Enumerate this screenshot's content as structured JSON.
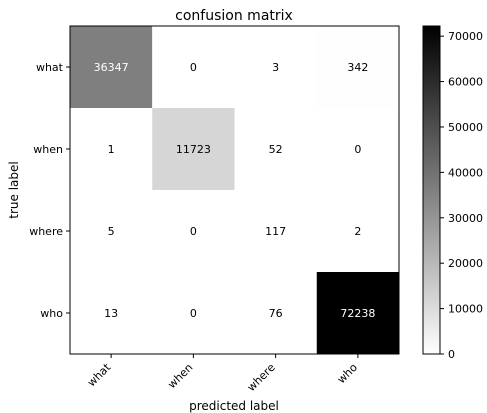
{
  "chart_data": {
    "type": "heatmap",
    "title": "confusion matrix",
    "xlabel": "predicted label",
    "ylabel": "true label",
    "x_categories": [
      "what",
      "when",
      "where",
      "who"
    ],
    "y_categories": [
      "what",
      "when",
      "where",
      "who"
    ],
    "matrix": [
      [
        36347,
        0,
        3,
        342
      ],
      [
        1,
        11723,
        52,
        0
      ],
      [
        5,
        0,
        117,
        2
      ],
      [
        13,
        0,
        76,
        72238
      ]
    ],
    "colormap": "grayscale (white = low, black = high)",
    "colorbar": {
      "range": [
        0,
        72238
      ],
      "ticks": [
        0,
        10000,
        20000,
        30000,
        40000,
        50000,
        60000,
        70000
      ]
    },
    "colors": {
      "low": "#ffffff",
      "high": "#000000",
      "text_on_dark": "#ffffff",
      "text_on_light": "#000000"
    }
  }
}
